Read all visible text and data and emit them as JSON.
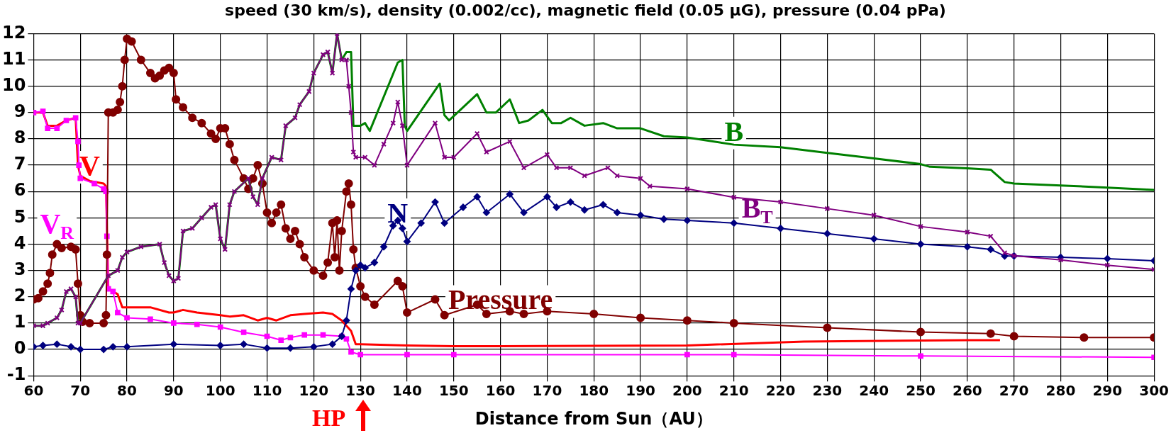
{
  "chart_data": {
    "type": "line",
    "title": "speed (30 km/s), density (0.002/cc), magnetic field (0.05 μG), pressure (0.04 pPa)",
    "xlabel": "Distance from Sun（AU）",
    "xlim": [
      60,
      300
    ],
    "xticks": [
      60,
      70,
      80,
      90,
      100,
      110,
      120,
      130,
      140,
      150,
      160,
      170,
      180,
      190,
      200,
      210,
      220,
      230,
      240,
      250,
      260,
      270,
      280,
      290,
      300
    ],
    "ylim": [
      -1,
      12
    ],
    "yticks": [
      -1,
      0,
      1,
      2,
      3,
      4,
      5,
      6,
      7,
      8,
      9,
      10,
      11,
      12
    ],
    "grid": true,
    "annotations": [
      "HP"
    ],
    "series": [
      {
        "name": "V",
        "color": "#ff0000",
        "type": "line",
        "marker": "none",
        "x": [
          60,
          62,
          63,
          65,
          67,
          69,
          69.5,
          70,
          72,
          75,
          75.5,
          76,
          78,
          79,
          85,
          89,
          90,
          92,
          95,
          100,
          102,
          105,
          108,
          110,
          112,
          115,
          118,
          122,
          124,
          126,
          128,
          129,
          130,
          140,
          150,
          160,
          200,
          225,
          260,
          267
        ],
        "values": [
          9.0,
          9.0,
          8.5,
          8.5,
          8.7,
          8.8,
          7.0,
          6.6,
          6.4,
          6.3,
          6.2,
          2.3,
          2.1,
          1.6,
          1.6,
          1.4,
          1.4,
          1.5,
          1.4,
          1.3,
          1.25,
          1.3,
          1.1,
          1.2,
          1.1,
          1.3,
          1.35,
          1.4,
          1.35,
          1.1,
          0.7,
          0.2,
          0.2,
          0.15,
          0.12,
          0.12,
          0.15,
          0.3,
          0.35,
          0.35
        ]
      },
      {
        "name": "V$_{R}$",
        "color": "#ff00ff",
        "type": "line",
        "marker": "square",
        "x": [
          60,
          62,
          63,
          65,
          67,
          69,
          69.5,
          69.7,
          70,
          73,
          75,
          75.5,
          75.7,
          76,
          77,
          78,
          80,
          85,
          90,
          95,
          100,
          105,
          110,
          113,
          115,
          118,
          122,
          126,
          127,
          128,
          130,
          140,
          150,
          200,
          210,
          250,
          300
        ],
        "values": [
          9.0,
          9.05,
          8.4,
          8.4,
          8.7,
          8.8,
          7.9,
          7.0,
          6.5,
          6.3,
          6.1,
          6.0,
          4.3,
          2.3,
          2.2,
          1.4,
          1.2,
          1.15,
          1.0,
          0.95,
          0.85,
          0.65,
          0.5,
          0.35,
          0.45,
          0.55,
          0.55,
          0.5,
          0.4,
          -0.1,
          -0.2,
          -0.2,
          -0.2,
          -0.2,
          -0.2,
          -0.25,
          -0.3
        ]
      },
      {
        "name": "Pressure",
        "color": "#800000",
        "type": "line",
        "marker": "circle",
        "x": [
          60,
          61,
          62,
          63,
          63.5,
          64,
          65,
          66,
          68,
          69,
          69.5,
          70,
          70.5,
          72,
          75,
          75.5,
          75.7,
          76,
          77,
          78,
          78.5,
          79,
          79.5,
          80,
          81,
          83,
          85,
          86,
          87,
          88,
          89,
          90,
          90.5,
          92,
          94,
          96,
          98,
          99,
          100,
          101,
          102,
          103,
          105,
          106,
          107,
          108,
          109,
          110,
          111,
          112,
          113,
          114,
          115,
          116,
          117,
          118,
          120,
          122,
          123,
          124,
          124.5,
          125,
          125.5,
          126,
          127,
          127.5,
          128,
          128.5,
          129,
          130,
          131,
          133,
          138,
          139,
          140,
          146,
          148,
          155,
          157,
          162,
          165,
          170,
          180,
          190,
          200,
          210,
          230,
          250,
          265,
          270,
          285,
          300
        ],
        "values": [
          1.9,
          1.95,
          2.2,
          2.5,
          2.9,
          3.6,
          4.0,
          3.85,
          3.9,
          3.8,
          2.5,
          1.3,
          1.05,
          1.0,
          1.0,
          1.3,
          3.6,
          9.0,
          9.0,
          9.1,
          9.4,
          10.0,
          11.0,
          11.8,
          11.7,
          11.0,
          10.5,
          10.3,
          10.4,
          10.6,
          10.7,
          10.5,
          9.5,
          9.2,
          8.8,
          8.6,
          8.2,
          8.0,
          8.4,
          8.4,
          7.8,
          7.2,
          6.5,
          6.1,
          6.5,
          7.0,
          6.3,
          5.2,
          4.8,
          5.2,
          5.5,
          4.6,
          4.2,
          4.5,
          4.0,
          3.5,
          3.0,
          2.8,
          3.3,
          4.8,
          3.5,
          4.9,
          3.0,
          4.5,
          6.0,
          6.3,
          5.5,
          3.8,
          3.1,
          2.4,
          2.0,
          1.7,
          2.6,
          2.4,
          1.4,
          1.9,
          1.3,
          1.7,
          1.35,
          1.45,
          1.35,
          1.45,
          1.35,
          1.2,
          1.1,
          1.0,
          0.82,
          0.66,
          0.6,
          0.5,
          0.45,
          0.45
        ]
      },
      {
        "name": "N",
        "color": "#000080",
        "type": "line",
        "marker": "diamond",
        "x": [
          60,
          62,
          65,
          68,
          70,
          75,
          77,
          80,
          90,
          100,
          105,
          110,
          115,
          120,
          124,
          126,
          127,
          128,
          129,
          130,
          131,
          133,
          135,
          137,
          138,
          139,
          140,
          143,
          146,
          148,
          152,
          155,
          157,
          162,
          165,
          170,
          172,
          175,
          178,
          182,
          185,
          190,
          195,
          200,
          210,
          220,
          230,
          240,
          250,
          260,
          265,
          268,
          270,
          280,
          290,
          300
        ],
        "values": [
          0.1,
          0.15,
          0.2,
          0.1,
          0.0,
          0.0,
          0.1,
          0.1,
          0.2,
          0.15,
          0.2,
          0.05,
          0.05,
          0.1,
          0.2,
          0.5,
          1.1,
          2.3,
          3.0,
          3.2,
          3.1,
          3.3,
          3.9,
          4.7,
          4.9,
          4.6,
          4.1,
          4.8,
          5.6,
          4.8,
          5.4,
          5.8,
          5.2,
          5.9,
          5.2,
          5.8,
          5.4,
          5.6,
          5.3,
          5.5,
          5.2,
          5.1,
          4.95,
          4.9,
          4.8,
          4.6,
          4.4,
          4.2,
          4.0,
          3.9,
          3.8,
          3.55,
          3.55,
          3.5,
          3.45,
          3.37
        ]
      },
      {
        "name": "B",
        "color": "#008000",
        "type": "line",
        "marker": "none",
        "x": [
          60,
          62,
          63,
          65,
          66,
          67,
          68,
          69,
          69.5,
          70,
          76,
          78,
          79,
          80,
          83,
          87,
          88,
          89,
          90,
          91,
          92,
          94,
          96,
          98,
          99,
          100,
          101,
          102,
          103,
          106,
          107,
          108,
          109,
          111,
          113,
          114,
          116,
          117,
          119,
          120,
          122,
          123,
          124,
          125,
          126,
          127,
          128,
          128.5,
          130,
          131,
          132,
          138,
          139,
          139.5,
          140,
          147,
          148,
          149,
          155,
          157,
          159,
          162,
          164,
          166,
          169,
          171,
          173,
          175,
          178,
          182,
          185,
          190,
          195,
          200,
          210,
          220,
          230,
          240,
          250,
          252,
          260,
          265,
          268,
          270,
          280,
          290,
          300
        ],
        "values": [
          0.9,
          0.9,
          1.0,
          1.2,
          1.5,
          2.2,
          2.3,
          2.0,
          1.0,
          1.0,
          2.8,
          3.0,
          3.5,
          3.7,
          3.9,
          4.0,
          3.3,
          2.8,
          2.6,
          2.7,
          4.5,
          4.6,
          5.0,
          5.4,
          5.5,
          4.2,
          3.8,
          5.5,
          6.0,
          6.5,
          5.8,
          5.5,
          6.5,
          7.3,
          7.2,
          8.5,
          8.8,
          9.3,
          9.8,
          10.5,
          11.2,
          11.3,
          10.5,
          12.0,
          11.0,
          11.3,
          11.3,
          8.5,
          8.5,
          8.6,
          8.3,
          10.9,
          11.0,
          8.5,
          8.3,
          10.1,
          8.9,
          8.7,
          9.7,
          9.0,
          9.0,
          9.5,
          8.6,
          8.7,
          9.1,
          8.6,
          8.6,
          8.8,
          8.5,
          8.6,
          8.4,
          8.4,
          8.1,
          8.05,
          7.78,
          7.68,
          7.47,
          7.26,
          7.04,
          6.94,
          6.88,
          6.83,
          6.36,
          6.3,
          6.23,
          6.15,
          6.06
        ]
      },
      {
        "name": "B$_{T}$",
        "color": "#800080",
        "type": "line",
        "marker": "cross",
        "x": [
          60,
          62,
          63,
          65,
          66,
          67,
          68,
          69,
          69.5,
          70,
          76,
          78,
          79,
          80,
          83,
          87,
          88,
          89,
          90,
          91,
          92,
          94,
          96,
          98,
          99,
          100,
          101,
          102,
          103,
          106,
          107,
          108,
          109,
          111,
          113,
          114,
          116,
          117,
          119,
          120,
          122,
          123,
          124,
          125,
          126,
          127,
          127.5,
          128,
          128.5,
          129,
          131,
          133,
          135,
          137,
          138,
          139,
          140,
          146,
          148,
          150,
          155,
          157,
          162,
          165,
          170,
          172,
          175,
          178,
          183,
          185,
          190,
          192,
          200,
          210,
          220,
          230,
          240,
          250,
          260,
          265,
          268,
          270,
          280,
          290,
          300
        ],
        "values": [
          0.9,
          0.9,
          1.0,
          1.2,
          1.5,
          2.2,
          2.3,
          2.0,
          1.0,
          1.0,
          2.8,
          3.0,
          3.5,
          3.7,
          3.9,
          4.0,
          3.3,
          2.8,
          2.6,
          2.7,
          4.5,
          4.6,
          5.0,
          5.4,
          5.5,
          4.2,
          3.8,
          5.5,
          6.0,
          6.5,
          5.8,
          5.5,
          6.5,
          7.3,
          7.2,
          8.5,
          8.8,
          9.3,
          9.8,
          10.5,
          11.2,
          11.3,
          10.5,
          12.0,
          11.0,
          11.0,
          10.0,
          9.0,
          7.5,
          7.3,
          7.3,
          7.0,
          7.8,
          8.6,
          9.4,
          8.5,
          7.0,
          8.6,
          7.3,
          7.3,
          8.2,
          7.5,
          7.9,
          6.9,
          7.4,
          6.9,
          6.9,
          6.6,
          6.9,
          6.6,
          6.5,
          6.2,
          6.1,
          5.78,
          5.6,
          5.35,
          5.1,
          4.67,
          4.46,
          4.3,
          3.67,
          3.56,
          3.4,
          3.2,
          3.04
        ]
      }
    ]
  }
}
